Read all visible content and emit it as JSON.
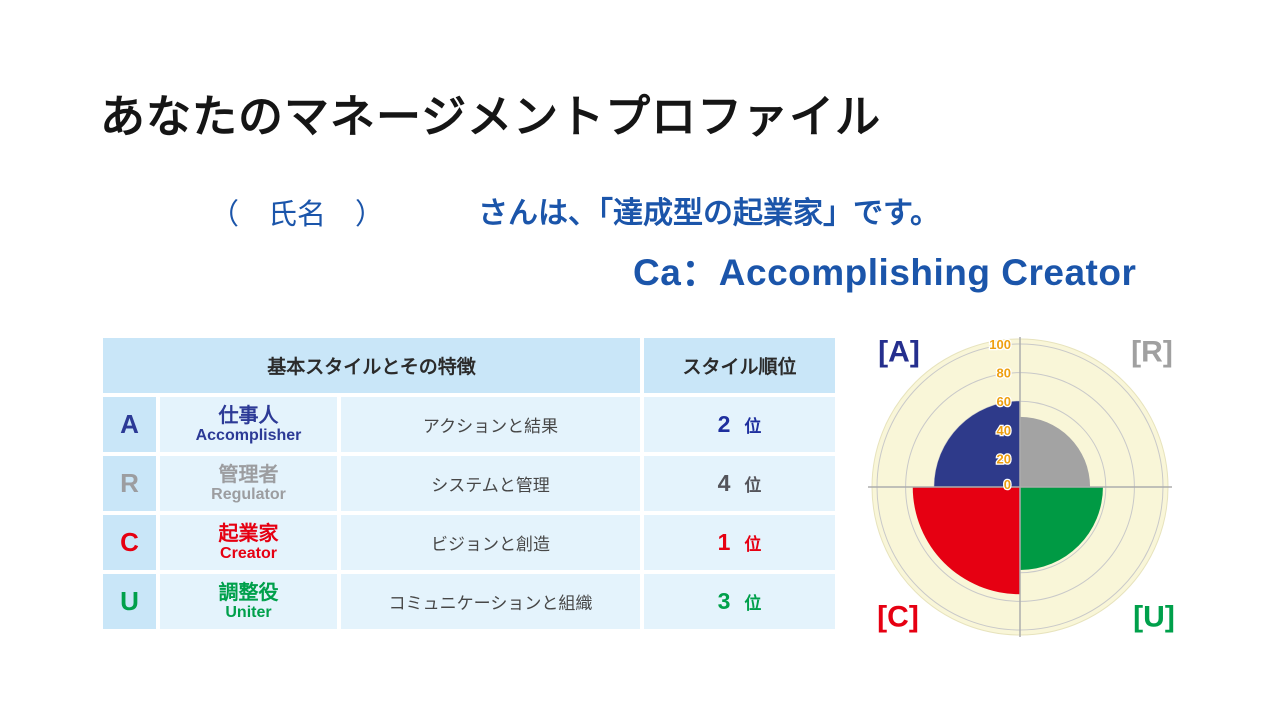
{
  "header": {
    "title": "あなたのマネージメントプロファイル"
  },
  "result": {
    "name_placeholder": "（　氏名　）",
    "sentence": "さんは、「達成型の起業家」です。",
    "type_code": "Ca：Accomplishing Creator",
    "text_color": "#1b55aa"
  },
  "table": {
    "header_styles": "基本スタイルとその特徴",
    "header_rank": "スタイル順位",
    "rank_suffix": "位",
    "rows": [
      {
        "key": "A",
        "name_jp": "仕事人",
        "name_en": "Accomplisher",
        "trait": "アクションと結果",
        "rank": "2",
        "color": "#2c3a96",
        "rank_color": "#1e2f9e"
      },
      {
        "key": "R",
        "name_jp": "管理者",
        "name_en": "Regulator",
        "trait": "システムと管理",
        "rank": "4",
        "color": "#9c9da0",
        "rank_color": "#54545a"
      },
      {
        "key": "C",
        "name_jp": "起業家",
        "name_en": "Creator",
        "trait": "ビジョンと創造",
        "rank": "1",
        "color": "#e60012",
        "rank_color": "#e60012"
      },
      {
        "key": "U",
        "name_jp": "調整役",
        "name_en": "Uniter",
        "trait": "コミュニケーションと組織",
        "rank": "3",
        "color": "#00a04b",
        "rank_color": "#00a04b"
      }
    ],
    "colors": {
      "header_bg": "#c9e6f8",
      "cell_bg": "#e4f3fc"
    }
  },
  "chart_data": {
    "type": "polar-quadrant",
    "title": "",
    "max": 100,
    "axis_ticks": [
      0,
      20,
      40,
      60,
      80,
      100
    ],
    "quadrants": [
      {
        "label": "[A]",
        "name": "Accomplisher",
        "value": 60,
        "position": "top-left",
        "color": "#2e3a8a",
        "label_color": "#252f8e"
      },
      {
        "label": "[R]",
        "name": "Regulator",
        "value": 49,
        "position": "top-right",
        "color": "#a3a3a3",
        "label_color": "#a0a0a0"
      },
      {
        "label": "[C]",
        "name": "Creator",
        "value": 75,
        "position": "bottom-left",
        "color": "#e60012",
        "label_color": "#e60012"
      },
      {
        "label": "[U]",
        "name": "Uniter",
        "value": 58,
        "position": "bottom-right",
        "color": "#009a44",
        "label_color": "#00a04b"
      }
    ],
    "styles": {
      "background": "#f9f6d8",
      "background_edge": "#e7e3bd",
      "grid": "#c9c9c9",
      "axis": "#adadad",
      "tick_text": "#ee9f10"
    }
  }
}
